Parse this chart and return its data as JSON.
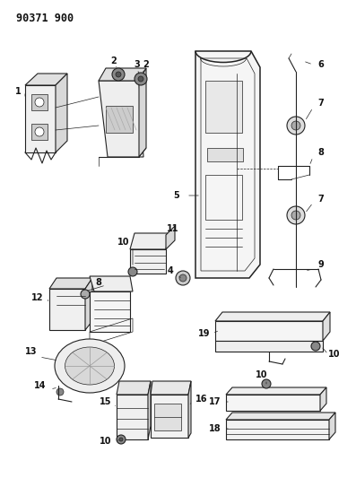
{
  "title": "90371 900",
  "bg_color": "#ffffff",
  "line_color": "#222222",
  "label_color": "#111111",
  "title_fontsize": 8.5,
  "label_fontsize": 7,
  "figsize": [
    3.97,
    5.33
  ],
  "dpi": 100
}
